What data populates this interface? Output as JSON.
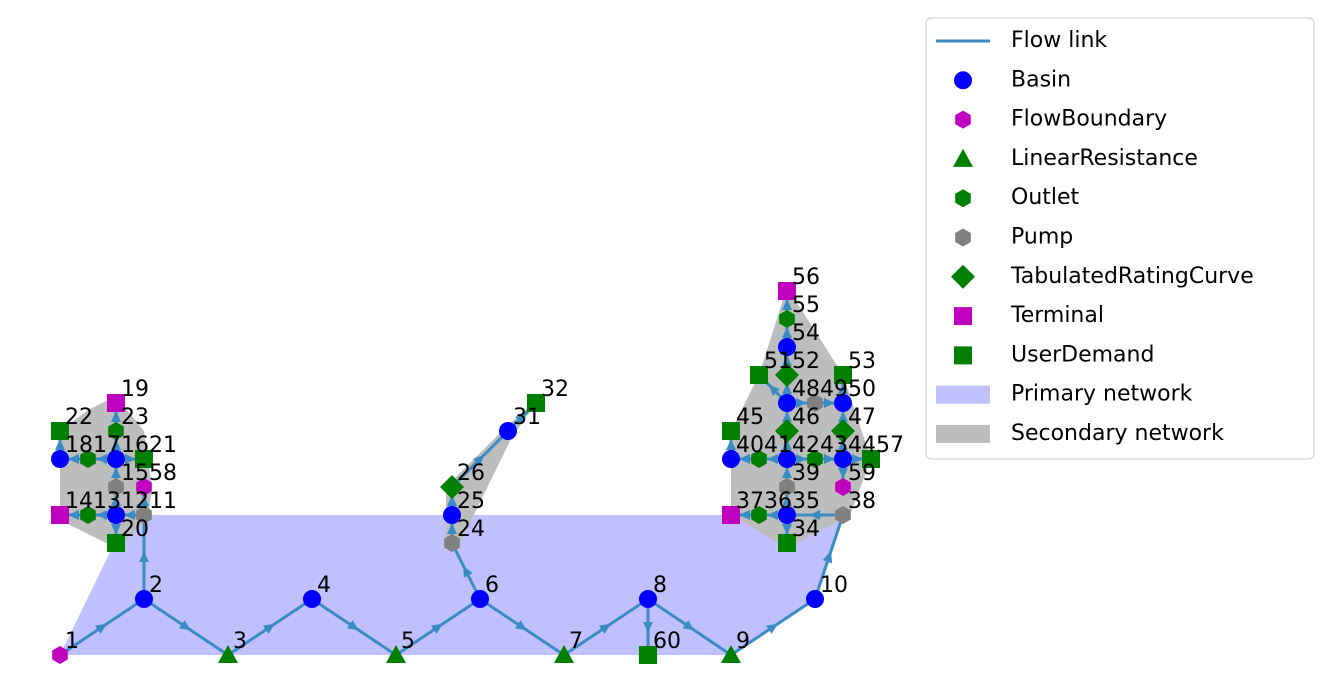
{
  "legend": {
    "items": [
      "Flow link",
      "Basin",
      "FlowBoundary",
      "LinearResistance",
      "Outlet",
      "Pump",
      "TabulatedRatingCurve",
      "Terminal",
      "UserDemand",
      "Primary network",
      "Secondary network"
    ]
  },
  "nodes": {
    "labels": [
      "1",
      "2",
      "3",
      "4",
      "5",
      "6",
      "7",
      "8",
      "9",
      "10",
      "11",
      "12",
      "13",
      "14",
      "15",
      "16",
      "17",
      "18",
      "19",
      "20",
      "21",
      "22",
      "23",
      "24",
      "25",
      "26",
      "31",
      "32",
      "34",
      "35",
      "36",
      "37",
      "38",
      "39",
      "40",
      "41",
      "42",
      "43",
      "44",
      "45",
      "46",
      "47",
      "48",
      "49",
      "50",
      "51",
      "52",
      "53",
      "54",
      "55",
      "56",
      "57",
      "58",
      "59",
      "60"
    ]
  }
}
